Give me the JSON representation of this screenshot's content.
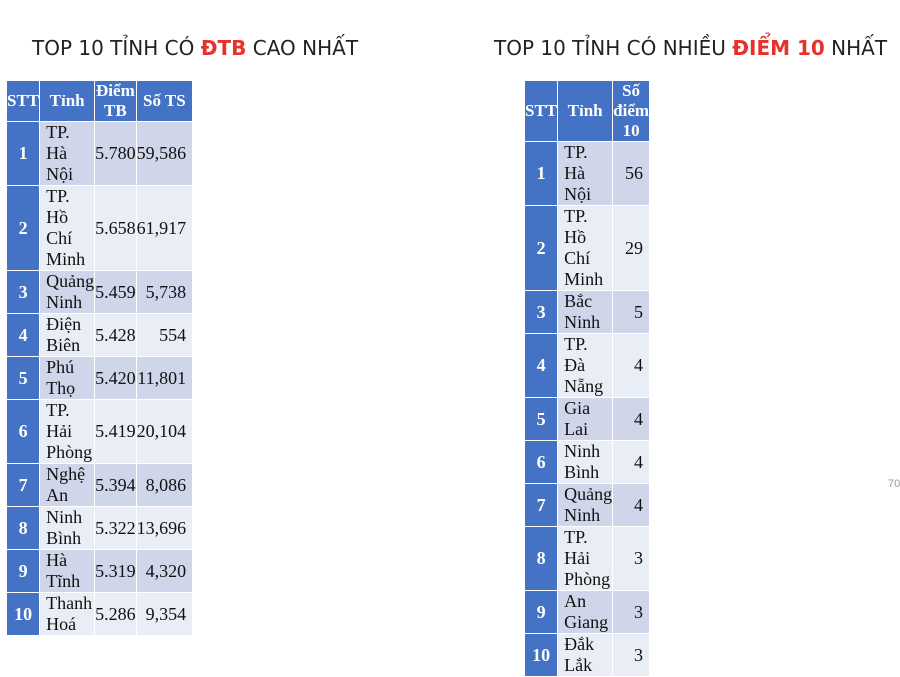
{
  "left": {
    "heading_pre": "TOP 10 TỈNH CÓ ",
    "heading_hl": "ĐTB",
    "heading_post": " CAO NHẤT",
    "columns": [
      "STT",
      "Tỉnh",
      "Điểm TB",
      "Số TS"
    ],
    "rows": [
      [
        "1",
        "TP. Hà Nội",
        "5.780",
        "59,586"
      ],
      [
        "2",
        "TP. Hồ Chí Minh",
        "5.658",
        "61,917"
      ],
      [
        "3",
        "Quảng Ninh",
        "5.459",
        "5,738"
      ],
      [
        "4",
        "Điện Biên",
        "5.428",
        "554"
      ],
      [
        "5",
        "Phú Thọ",
        "5.420",
        "11,801"
      ],
      [
        "6",
        "TP. Hải Phòng",
        "5.419",
        "20,104"
      ],
      [
        "7",
        "Nghệ An",
        "5.394",
        "8,086"
      ],
      [
        "8",
        "Ninh Bình",
        "5.322",
        "13,696"
      ],
      [
        "9",
        "Hà Tĩnh",
        "5.319",
        "4,320"
      ],
      [
        "10",
        "Thanh Hoá",
        "5.286",
        "9,354"
      ]
    ]
  },
  "right": {
    "heading_pre": "TOP 10 TỈNH CÓ NHIỀU ",
    "heading_hl": "ĐIỂM 10",
    "heading_post": " NHẤT",
    "columns": [
      "STT",
      "Tỉnh",
      "Số điểm 10"
    ],
    "rows": [
      [
        "1",
        "TP. Hà Nội",
        "56"
      ],
      [
        "2",
        "TP. Hồ Chí Minh",
        "29"
      ],
      [
        "3",
        "Bắc Ninh",
        "5"
      ],
      [
        "4",
        "TP. Đà Nẵng",
        "4"
      ],
      [
        "5",
        "Gia Lai",
        "4"
      ],
      [
        "6",
        "Ninh Bình",
        "4"
      ],
      [
        "7",
        "Quảng Ninh",
        "4"
      ],
      [
        "8",
        "TP. Hải Phòng",
        "3"
      ],
      [
        "9",
        "An Giang",
        "3"
      ],
      [
        "10",
        "Đắk Lắk",
        "3"
      ]
    ]
  },
  "page_number": "70",
  "colors": {
    "header_blue": "#4472c4",
    "row_dark": "#cfd6ea",
    "row_light": "#e9edf5",
    "highlight_red": "#e8312a"
  }
}
